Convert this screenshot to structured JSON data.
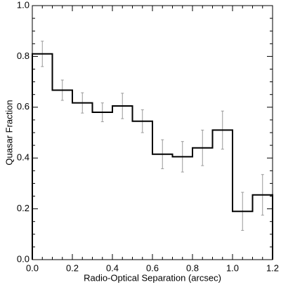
{
  "chart_data": {
    "type": "histogram",
    "xlabel": "Radio-Optical Separation (arcsec)",
    "ylabel": "Quasar Fraction",
    "bins": [
      0.0,
      0.1,
      0.2,
      0.3,
      0.4,
      0.5,
      0.6,
      0.7,
      0.8,
      0.9,
      1.0,
      1.1,
      1.2
    ],
    "values": [
      0.81,
      0.667,
      0.617,
      0.58,
      0.605,
      0.545,
      0.415,
      0.405,
      0.44,
      0.51,
      0.19,
      0.255
    ],
    "errors": [
      0.05,
      0.04,
      0.04,
      0.037,
      0.05,
      0.045,
      0.057,
      0.06,
      0.07,
      0.075,
      0.075,
      0.08
    ],
    "color": "#000000",
    "error_color": "#999999",
    "xlim": [
      0,
      1.2
    ],
    "ylim": [
      0,
      1.0
    ],
    "xticks": [
      {
        "value": 0,
        "label": "0.0"
      },
      0.2,
      0.4,
      0.6,
      0.8,
      {
        "value": 1,
        "label": "1.0"
      },
      1.2
    ],
    "yticks": [
      {
        "value": 0,
        "label": "0.0"
      },
      0.2,
      0.4,
      0.6,
      0.8,
      {
        "value": 1,
        "label": "1.0"
      }
    ]
  }
}
